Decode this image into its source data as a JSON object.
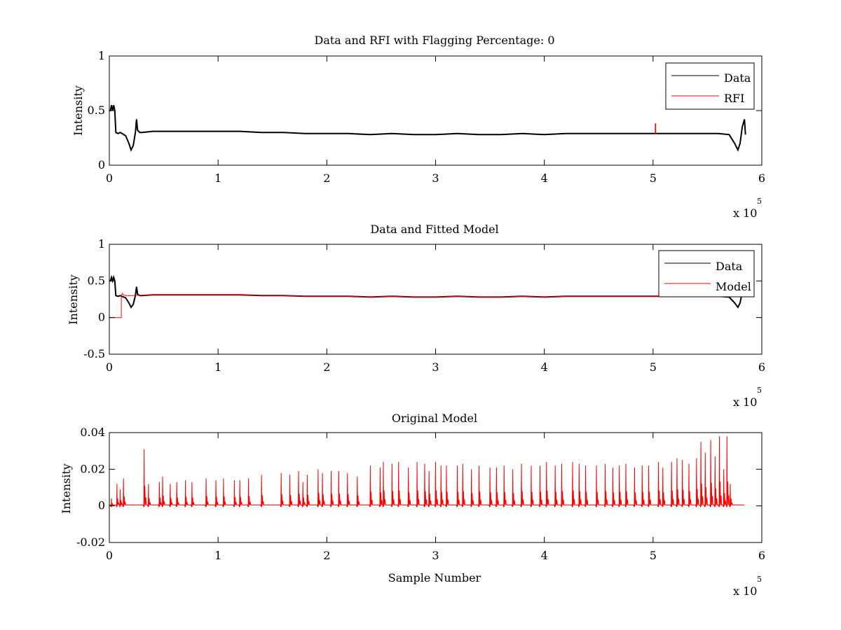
{
  "chart_data": [
    {
      "type": "line",
      "title": "Data and RFI with Flagging Percentage: 0",
      "xlabel": "",
      "ylabel": "Intensity",
      "xlim": [
        0,
        600000
      ],
      "ylim": [
        0,
        1
      ],
      "xticks": [
        0,
        100000,
        200000,
        300000,
        400000,
        500000,
        600000
      ],
      "xtick_labels": [
        "0",
        "1",
        "2",
        "3",
        "4",
        "5",
        "6"
      ],
      "yticks": [
        0,
        0.5,
        1
      ],
      "ytick_labels": [
        "0",
        "0.5",
        "1"
      ],
      "x_multiplier": {
        "base": "x 10",
        "exponent": "5"
      },
      "grid": false,
      "legend_position": "top-right",
      "series": [
        {
          "name": "Data",
          "color": "#000000",
          "x": [
            0,
            1000,
            2000,
            3000,
            4000,
            5000,
            6000,
            8000,
            10000,
            15000,
            18000,
            20000,
            22000,
            24000,
            25000,
            26000,
            28000,
            30000,
            40000,
            60000,
            80000,
            100000,
            120000,
            140000,
            160000,
            180000,
            200000,
            220000,
            240000,
            260000,
            280000,
            300000,
            320000,
            340000,
            360000,
            380000,
            400000,
            420000,
            440000,
            460000,
            480000,
            500000,
            520000,
            540000,
            560000,
            570000,
            575000,
            578000,
            580000,
            582000,
            584000,
            585000
          ],
          "y": [
            0.5,
            0.5,
            0.55,
            0.5,
            0.55,
            0.5,
            0.3,
            0.29,
            0.3,
            0.27,
            0.2,
            0.14,
            0.18,
            0.3,
            0.42,
            0.32,
            0.3,
            0.3,
            0.31,
            0.31,
            0.31,
            0.31,
            0.31,
            0.3,
            0.3,
            0.29,
            0.29,
            0.29,
            0.28,
            0.29,
            0.28,
            0.28,
            0.29,
            0.28,
            0.28,
            0.29,
            0.28,
            0.29,
            0.29,
            0.29,
            0.29,
            0.29,
            0.29,
            0.29,
            0.29,
            0.28,
            0.2,
            0.14,
            0.2,
            0.35,
            0.42,
            0.28
          ]
        },
        {
          "name": "RFI",
          "color": "#ff0000",
          "x": [
            502000,
            502000,
            502500,
            502500
          ],
          "y": [
            0.29,
            0.38,
            0.38,
            0.29
          ]
        }
      ]
    },
    {
      "type": "line",
      "title": "Data and Fitted Model",
      "xlabel": "",
      "ylabel": "Intensity",
      "xlim": [
        0,
        600000
      ],
      "ylim": [
        -0.5,
        1
      ],
      "xticks": [
        0,
        100000,
        200000,
        300000,
        400000,
        500000,
        600000
      ],
      "xtick_labels": [
        "0",
        "1",
        "2",
        "3",
        "4",
        "5",
        "6"
      ],
      "yticks": [
        -0.5,
        0,
        0.5,
        1
      ],
      "ytick_labels": [
        "-0.5",
        "0",
        "0.5",
        "1"
      ],
      "x_multiplier": {
        "base": "x 10",
        "exponent": "5"
      },
      "grid": false,
      "legend_position": "top-right",
      "series": [
        {
          "name": "Data",
          "color": "#000000",
          "x": [
            0,
            1000,
            2000,
            3000,
            4000,
            5000,
            6000,
            8000,
            10000,
            15000,
            18000,
            20000,
            22000,
            24000,
            25000,
            26000,
            28000,
            30000,
            40000,
            60000,
            80000,
            100000,
            120000,
            140000,
            160000,
            180000,
            200000,
            220000,
            240000,
            260000,
            280000,
            300000,
            320000,
            340000,
            360000,
            380000,
            400000,
            420000,
            440000,
            460000,
            480000,
            500000,
            520000,
            540000,
            560000,
            570000,
            575000,
            578000,
            580000,
            582000,
            584000,
            585000
          ],
          "y": [
            0.5,
            0.5,
            0.55,
            0.5,
            0.55,
            0.5,
            0.3,
            0.29,
            0.3,
            0.27,
            0.2,
            0.14,
            0.18,
            0.3,
            0.42,
            0.32,
            0.3,
            0.3,
            0.31,
            0.31,
            0.31,
            0.31,
            0.31,
            0.3,
            0.3,
            0.29,
            0.29,
            0.29,
            0.28,
            0.29,
            0.28,
            0.28,
            0.29,
            0.28,
            0.28,
            0.29,
            0.28,
            0.29,
            0.29,
            0.29,
            0.29,
            0.29,
            0.29,
            0.29,
            0.29,
            0.28,
            0.2,
            0.14,
            0.2,
            0.35,
            0.42,
            0.28
          ]
        },
        {
          "name": "Model",
          "color": "#ff0000",
          "x": [
            0,
            11000,
            11000,
            12000,
            13000,
            15000,
            20000,
            40000,
            60000,
            80000,
            100000,
            120000,
            140000,
            160000,
            180000,
            200000,
            220000,
            240000,
            260000,
            280000,
            300000,
            320000,
            340000,
            360000,
            380000,
            400000,
            420000,
            440000,
            460000,
            480000,
            500000,
            505000
          ],
          "y": [
            0,
            0,
            0.3,
            0.33,
            0.31,
            0.3,
            0.3,
            0.31,
            0.31,
            0.31,
            0.31,
            0.31,
            0.3,
            0.3,
            0.29,
            0.29,
            0.29,
            0.28,
            0.29,
            0.28,
            0.28,
            0.29,
            0.28,
            0.28,
            0.29,
            0.28,
            0.29,
            0.29,
            0.29,
            0.29,
            0.29,
            0.29
          ]
        }
      ]
    },
    {
      "type": "line",
      "title": "Original Model",
      "xlabel": "Sample Number",
      "ylabel": "Intensity",
      "xlim": [
        0,
        600000
      ],
      "ylim": [
        -0.02,
        0.04
      ],
      "xticks": [
        0,
        100000,
        200000,
        300000,
        400000,
        500000,
        600000
      ],
      "xtick_labels": [
        "0",
        "1",
        "2",
        "3",
        "4",
        "5",
        "6"
      ],
      "yticks": [
        -0.02,
        0,
        0.02,
        0.04
      ],
      "ytick_labels": [
        "-0.02",
        "0",
        "0.02",
        "0.04"
      ],
      "x_multiplier": {
        "base": "x 10",
        "exponent": "5"
      },
      "grid": false,
      "series": [
        {
          "color": "#ff0000",
          "baseline": 0.0005,
          "x_end": 584000,
          "peaks": [
            [
              2000,
              0.004
            ],
            [
              7000,
              0.012
            ],
            [
              10000,
              0.009
            ],
            [
              13000,
              0.015
            ],
            [
              32000,
              0.031
            ],
            [
              36000,
              0.012
            ],
            [
              46000,
              0.013
            ],
            [
              49000,
              0.016
            ],
            [
              56000,
              0.012
            ],
            [
              62000,
              0.013
            ],
            [
              70000,
              0.014
            ],
            [
              76000,
              0.013
            ],
            [
              89000,
              0.015
            ],
            [
              98000,
              0.014
            ],
            [
              105000,
              0.015
            ],
            [
              115000,
              0.014
            ],
            [
              120000,
              0.014
            ],
            [
              128000,
              0.015
            ],
            [
              140000,
              0.017
            ],
            [
              158000,
              0.018
            ],
            [
              166000,
              0.017
            ],
            [
              174000,
              0.019
            ],
            [
              178000,
              0.013
            ],
            [
              182000,
              0.017
            ],
            [
              192000,
              0.02
            ],
            [
              196000,
              0.018
            ],
            [
              204000,
              0.019
            ],
            [
              211000,
              0.019
            ],
            [
              219000,
              0.018
            ],
            [
              228000,
              0.016
            ],
            [
              240000,
              0.022
            ],
            [
              249000,
              0.021
            ],
            [
              252000,
              0.024
            ],
            [
              260000,
              0.023
            ],
            [
              266000,
              0.024
            ],
            [
              275000,
              0.021
            ],
            [
              283000,
              0.024
            ],
            [
              290000,
              0.023
            ],
            [
              294000,
              0.019
            ],
            [
              300000,
              0.024
            ],
            [
              305000,
              0.022
            ],
            [
              310000,
              0.022
            ],
            [
              320000,
              0.022
            ],
            [
              325000,
              0.023
            ],
            [
              333000,
              0.02
            ],
            [
              340000,
              0.022
            ],
            [
              350000,
              0.021
            ],
            [
              356000,
              0.021
            ],
            [
              363000,
              0.022
            ],
            [
              371000,
              0.02
            ],
            [
              379000,
              0.023
            ],
            [
              388000,
              0.022
            ],
            [
              396000,
              0.022
            ],
            [
              402000,
              0.024
            ],
            [
              410000,
              0.022
            ],
            [
              416000,
              0.023
            ],
            [
              426000,
              0.024
            ],
            [
              432000,
              0.023
            ],
            [
              438000,
              0.022
            ],
            [
              448000,
              0.022
            ],
            [
              456000,
              0.023
            ],
            [
              463000,
              0.021
            ],
            [
              469000,
              0.022
            ],
            [
              475000,
              0.023
            ],
            [
              483000,
              0.021
            ],
            [
              490000,
              0.022
            ],
            [
              496000,
              0.022
            ],
            [
              505000,
              0.024
            ],
            [
              509000,
              0.021
            ],
            [
              517000,
              0.024
            ],
            [
              522000,
              0.026
            ],
            [
              527000,
              0.025
            ],
            [
              533000,
              0.023
            ],
            [
              540000,
              0.026
            ],
            [
              544000,
              0.035
            ],
            [
              548000,
              0.029
            ],
            [
              553000,
              0.036
            ],
            [
              557000,
              0.027
            ],
            [
              561000,
              0.038
            ],
            [
              565000,
              0.02
            ],
            [
              568000,
              0.038
            ],
            [
              571000,
              0.012
            ]
          ]
        }
      ]
    }
  ]
}
